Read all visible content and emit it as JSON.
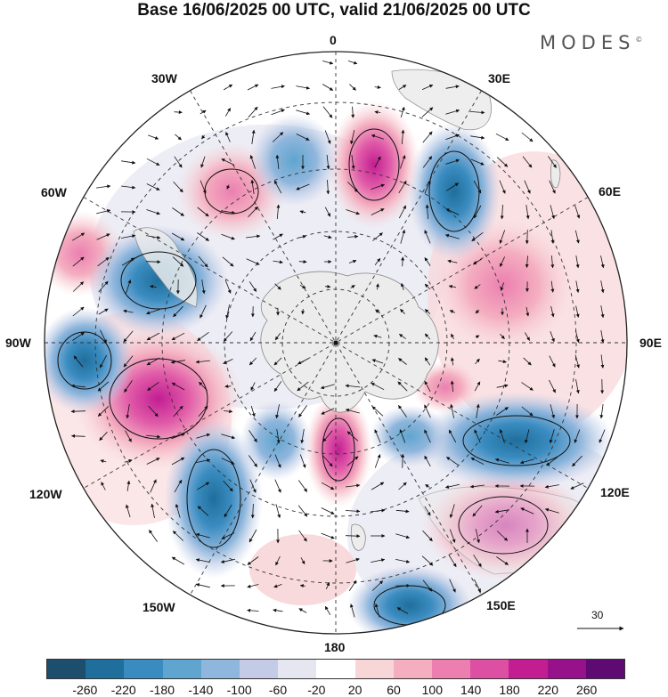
{
  "header": {
    "title": "Base 16/06/2025 00 UTC, valid 21/06/2025 00 UTC",
    "brand": "MODES",
    "brand_mark": "©"
  },
  "map": {
    "projection": "south-polar-stereographic",
    "longitude_labels": {
      "top": "0",
      "e30": "30E",
      "e60": "60E",
      "e90": "90E",
      "e120": "120E",
      "e150": "150E",
      "bottom": "180",
      "w150": "150W",
      "w120": "120W",
      "w90": "90W",
      "w60": "60W",
      "w30": "30W"
    },
    "reference_vector_label": "30",
    "anomaly_centers": [
      {
        "sign": "negative",
        "region": "southeast Pacific near 90W",
        "magnitude": 180
      },
      {
        "sign": "negative",
        "region": "South Pacific near 120W-130W",
        "magnitude": 220
      },
      {
        "sign": "negative",
        "region": "south of New Zealand near 150E-160E",
        "magnitude": 180
      },
      {
        "sign": "negative",
        "region": "southern Indian Ocean near 110E-120E",
        "magnitude": 220
      },
      {
        "sign": "negative",
        "region": "southwest Indian Ocean near 30E",
        "magnitude": 200
      },
      {
        "sign": "negative",
        "region": "Drake Passage / South America near 70W",
        "magnitude": 180
      },
      {
        "sign": "positive",
        "region": "near 110W",
        "magnitude": 220
      },
      {
        "sign": "positive",
        "region": "southern Australia near 135E",
        "magnitude": 200
      },
      {
        "sign": "positive",
        "region": "near 180 (Ross Sea)",
        "magnitude": 180
      },
      {
        "sign": "positive",
        "region": "south Atlantic near 20W",
        "magnitude": 160
      },
      {
        "sign": "positive",
        "region": "near 10E",
        "magnitude": 160
      },
      {
        "sign": "positive",
        "region": "near 60E-70E",
        "magnitude": 140
      }
    ]
  },
  "colorbar": {
    "colors": [
      "#1d4e6e",
      "#1f6e9c",
      "#3a8cc0",
      "#5fa5cf",
      "#8fb6dc",
      "#c3cbe6",
      "#e6e6f1",
      "#ffffff",
      "#f8d6d8",
      "#f4aec0",
      "#ec7fb0",
      "#dc4fa3",
      "#c21e92",
      "#97118a",
      "#5e0a72"
    ],
    "tick_labels": [
      "-260",
      "-220",
      "-180",
      "-140",
      "-100",
      "-60",
      "-20",
      "20",
      "60",
      "100",
      "140",
      "180",
      "220",
      "260"
    ]
  }
}
